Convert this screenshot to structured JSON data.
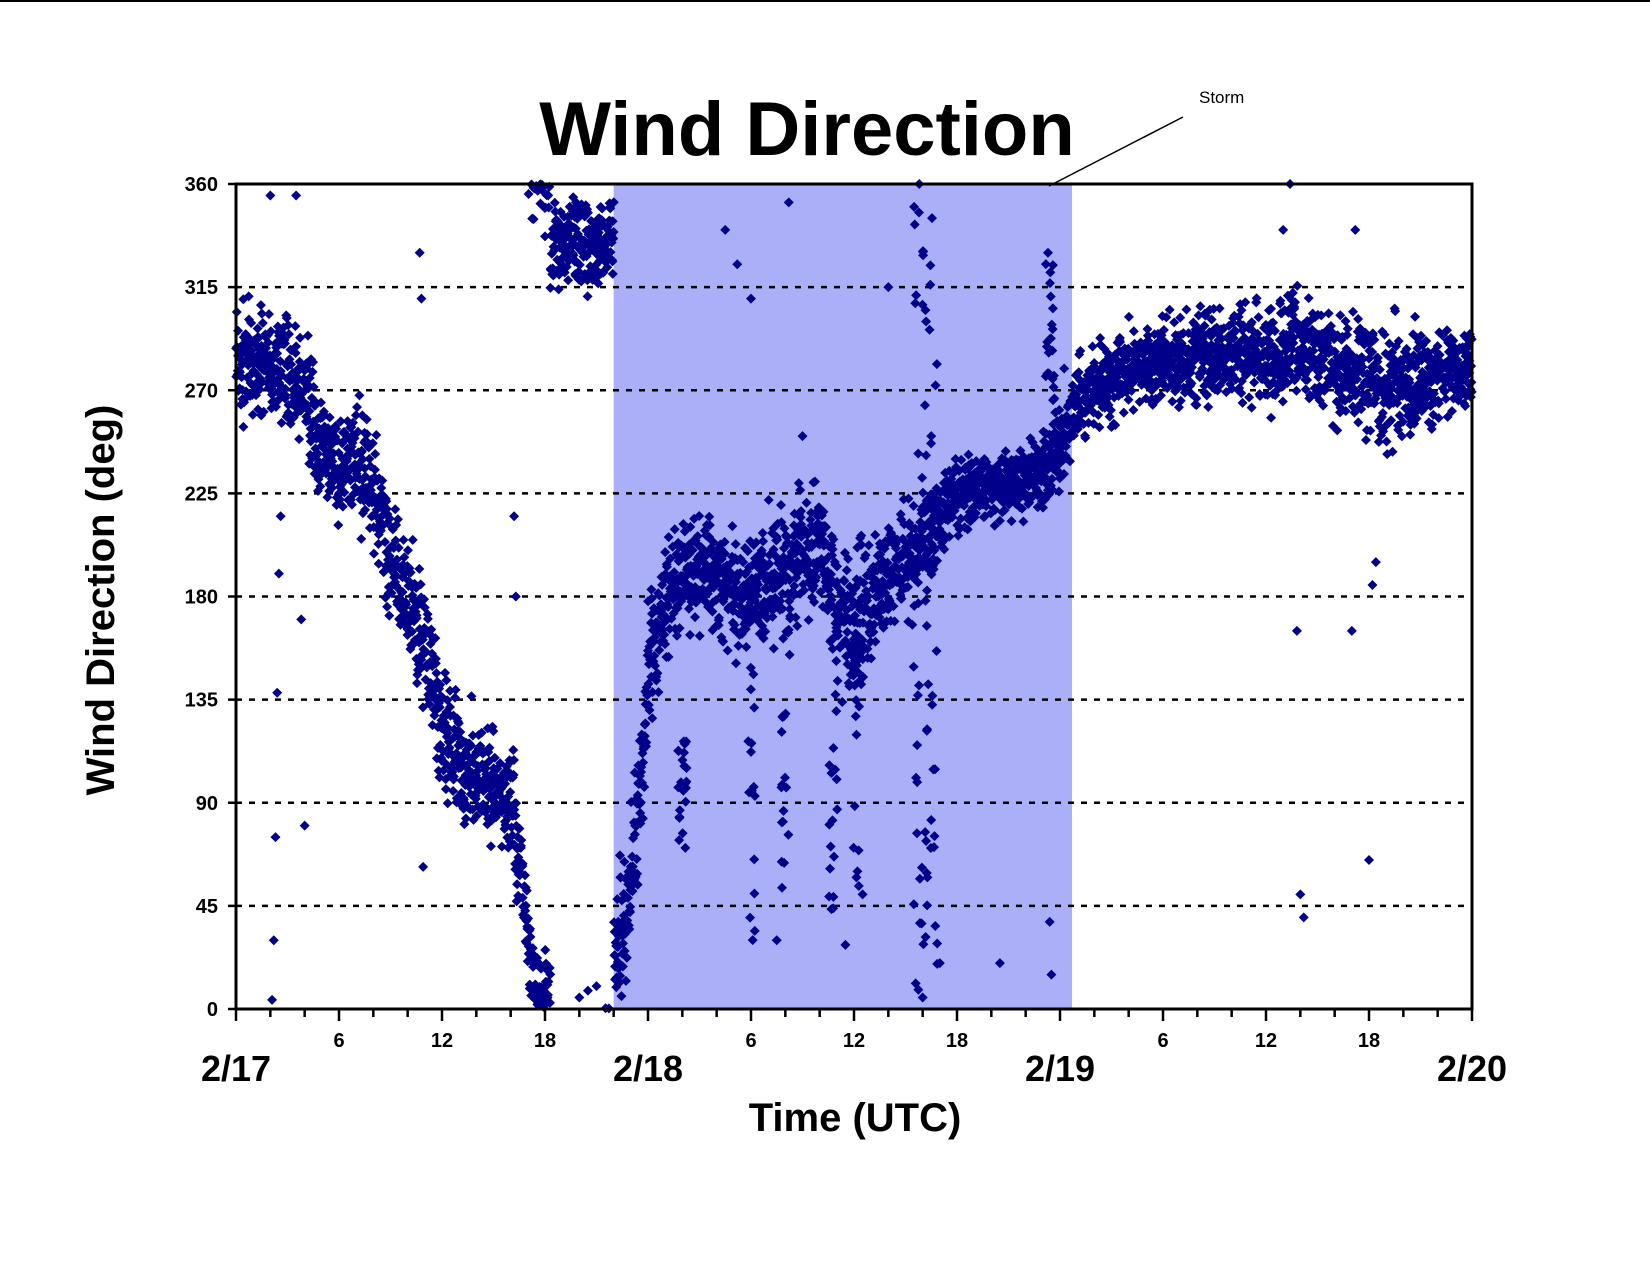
{
  "chart_data": {
    "type": "scatter",
    "title": "Wind Direction",
    "xlabel": "Time (UTC)",
    "ylabel": "Wind Direction (deg)",
    "ylim": [
      0,
      360
    ],
    "xlim_hours": [
      0,
      72
    ],
    "y_ticks": [
      "0",
      "45",
      "90",
      "135",
      "180",
      "225",
      "270",
      "315",
      "360"
    ],
    "x_hour_ticks": [
      "6",
      "12",
      "18",
      "6",
      "12",
      "18",
      "6",
      "12",
      "18"
    ],
    "day_labels": [
      "2/17",
      "2/18",
      "2/19",
      "2/20"
    ],
    "grid": "horizontal dashed",
    "marker_color": "#00008B",
    "shade_color": "#AAAFF8",
    "annotation": {
      "text": "Storm",
      "storm_period_hours": [
        22,
        48.7
      ]
    },
    "trend": [
      [
        0,
        280
      ],
      [
        1,
        285
      ],
      [
        2,
        278
      ],
      [
        3,
        275
      ],
      [
        4,
        268
      ],
      [
        5,
        245
      ],
      [
        6,
        232
      ],
      [
        7,
        240
      ],
      [
        8,
        225
      ],
      [
        9,
        195
      ],
      [
        10,
        180
      ],
      [
        11,
        160
      ],
      [
        12,
        120
      ],
      [
        13,
        108
      ],
      [
        14,
        100
      ],
      [
        15,
        97
      ],
      [
        16,
        92
      ],
      [
        16.6,
        60
      ],
      [
        17,
        22
      ],
      [
        17.5,
        8
      ],
      [
        18,
        4
      ],
      [
        18.3,
        330
      ],
      [
        21.5,
        335
      ],
      [
        22,
        20
      ],
      [
        22.8,
        40
      ],
      [
        23.5,
        90
      ],
      [
        24,
        150
      ],
      [
        25,
        180
      ],
      [
        26,
        192
      ],
      [
        28,
        188
      ],
      [
        30,
        178
      ],
      [
        32,
        192
      ],
      [
        34,
        205
      ],
      [
        35,
        175
      ],
      [
        36,
        160
      ],
      [
        37,
        180
      ],
      [
        38,
        192
      ],
      [
        40,
        205
      ],
      [
        42,
        225
      ],
      [
        44,
        228
      ],
      [
        46,
        232
      ],
      [
        47.5,
        240
      ],
      [
        48.5,
        258
      ],
      [
        50,
        272
      ],
      [
        52,
        280
      ],
      [
        54,
        282
      ],
      [
        56,
        285
      ],
      [
        58,
        288
      ],
      [
        60,
        282
      ],
      [
        62,
        290
      ],
      [
        64,
        280
      ],
      [
        66,
        275
      ],
      [
        68,
        270
      ],
      [
        70,
        278
      ],
      [
        72,
        280
      ]
    ],
    "spread": [
      [
        0,
        14
      ],
      [
        6,
        12
      ],
      [
        8,
        16
      ],
      [
        10,
        14
      ],
      [
        12,
        14
      ],
      [
        16,
        12
      ],
      [
        17,
        14
      ],
      [
        18,
        12
      ],
      [
        21.5,
        12
      ],
      [
        22,
        12
      ],
      [
        23,
        18
      ],
      [
        24,
        18
      ],
      [
        26,
        12
      ],
      [
        30,
        14
      ],
      [
        34,
        14
      ],
      [
        36,
        16
      ],
      [
        38,
        14
      ],
      [
        40,
        10
      ],
      [
        44,
        8
      ],
      [
        48,
        10
      ],
      [
        50,
        9
      ],
      [
        56,
        10
      ],
      [
        60,
        12
      ],
      [
        64,
        12
      ],
      [
        68,
        14
      ],
      [
        72,
        10
      ]
    ],
    "scatter_outliers": [
      [
        2,
        355
      ],
      [
        2.1,
        4
      ],
      [
        2.2,
        30
      ],
      [
        2.3,
        75
      ],
      [
        2.4,
        138
      ],
      [
        2.5,
        190
      ],
      [
        2.6,
        215
      ],
      [
        3.5,
        355
      ],
      [
        3.8,
        170
      ],
      [
        4,
        80
      ],
      [
        10.7,
        330
      ],
      [
        10.8,
        310
      ],
      [
        10.9,
        62
      ],
      [
        16.2,
        215
      ],
      [
        16.3,
        180
      ],
      [
        20,
        5
      ],
      [
        20.5,
        8
      ],
      [
        21,
        10
      ],
      [
        28.5,
        340
      ],
      [
        29.2,
        325
      ],
      [
        30,
        310
      ],
      [
        31.5,
        30
      ],
      [
        32.2,
        352
      ],
      [
        33,
        250
      ],
      [
        35.5,
        28
      ],
      [
        36.5,
        50
      ],
      [
        38,
        315
      ],
      [
        39.5,
        350
      ],
      [
        39.8,
        360
      ],
      [
        40.2,
        300
      ],
      [
        40.5,
        250
      ],
      [
        41,
        20
      ],
      [
        40,
        5
      ],
      [
        44.5,
        20
      ],
      [
        47.3,
        330
      ],
      [
        47.4,
        38
      ],
      [
        47.5,
        15
      ],
      [
        61,
        340
      ],
      [
        61.4,
        360
      ],
      [
        61.8,
        165
      ],
      [
        62,
        50
      ],
      [
        62.2,
        40
      ],
      [
        65.2,
        340
      ],
      [
        65,
        165
      ],
      [
        66,
        65
      ],
      [
        66.2,
        185
      ],
      [
        66.4,
        195
      ]
    ],
    "storm_columns": [
      [
        39.6,
        0,
        360
      ],
      [
        40.1,
        0,
        345
      ],
      [
        40.6,
        0,
        360
      ],
      [
        36.2,
        40,
        210
      ],
      [
        32,
        50,
        200
      ],
      [
        30,
        30,
        190
      ],
      [
        47.4,
        260,
        330
      ],
      [
        26,
        70,
        120
      ],
      [
        34.8,
        40,
        170
      ]
    ]
  }
}
